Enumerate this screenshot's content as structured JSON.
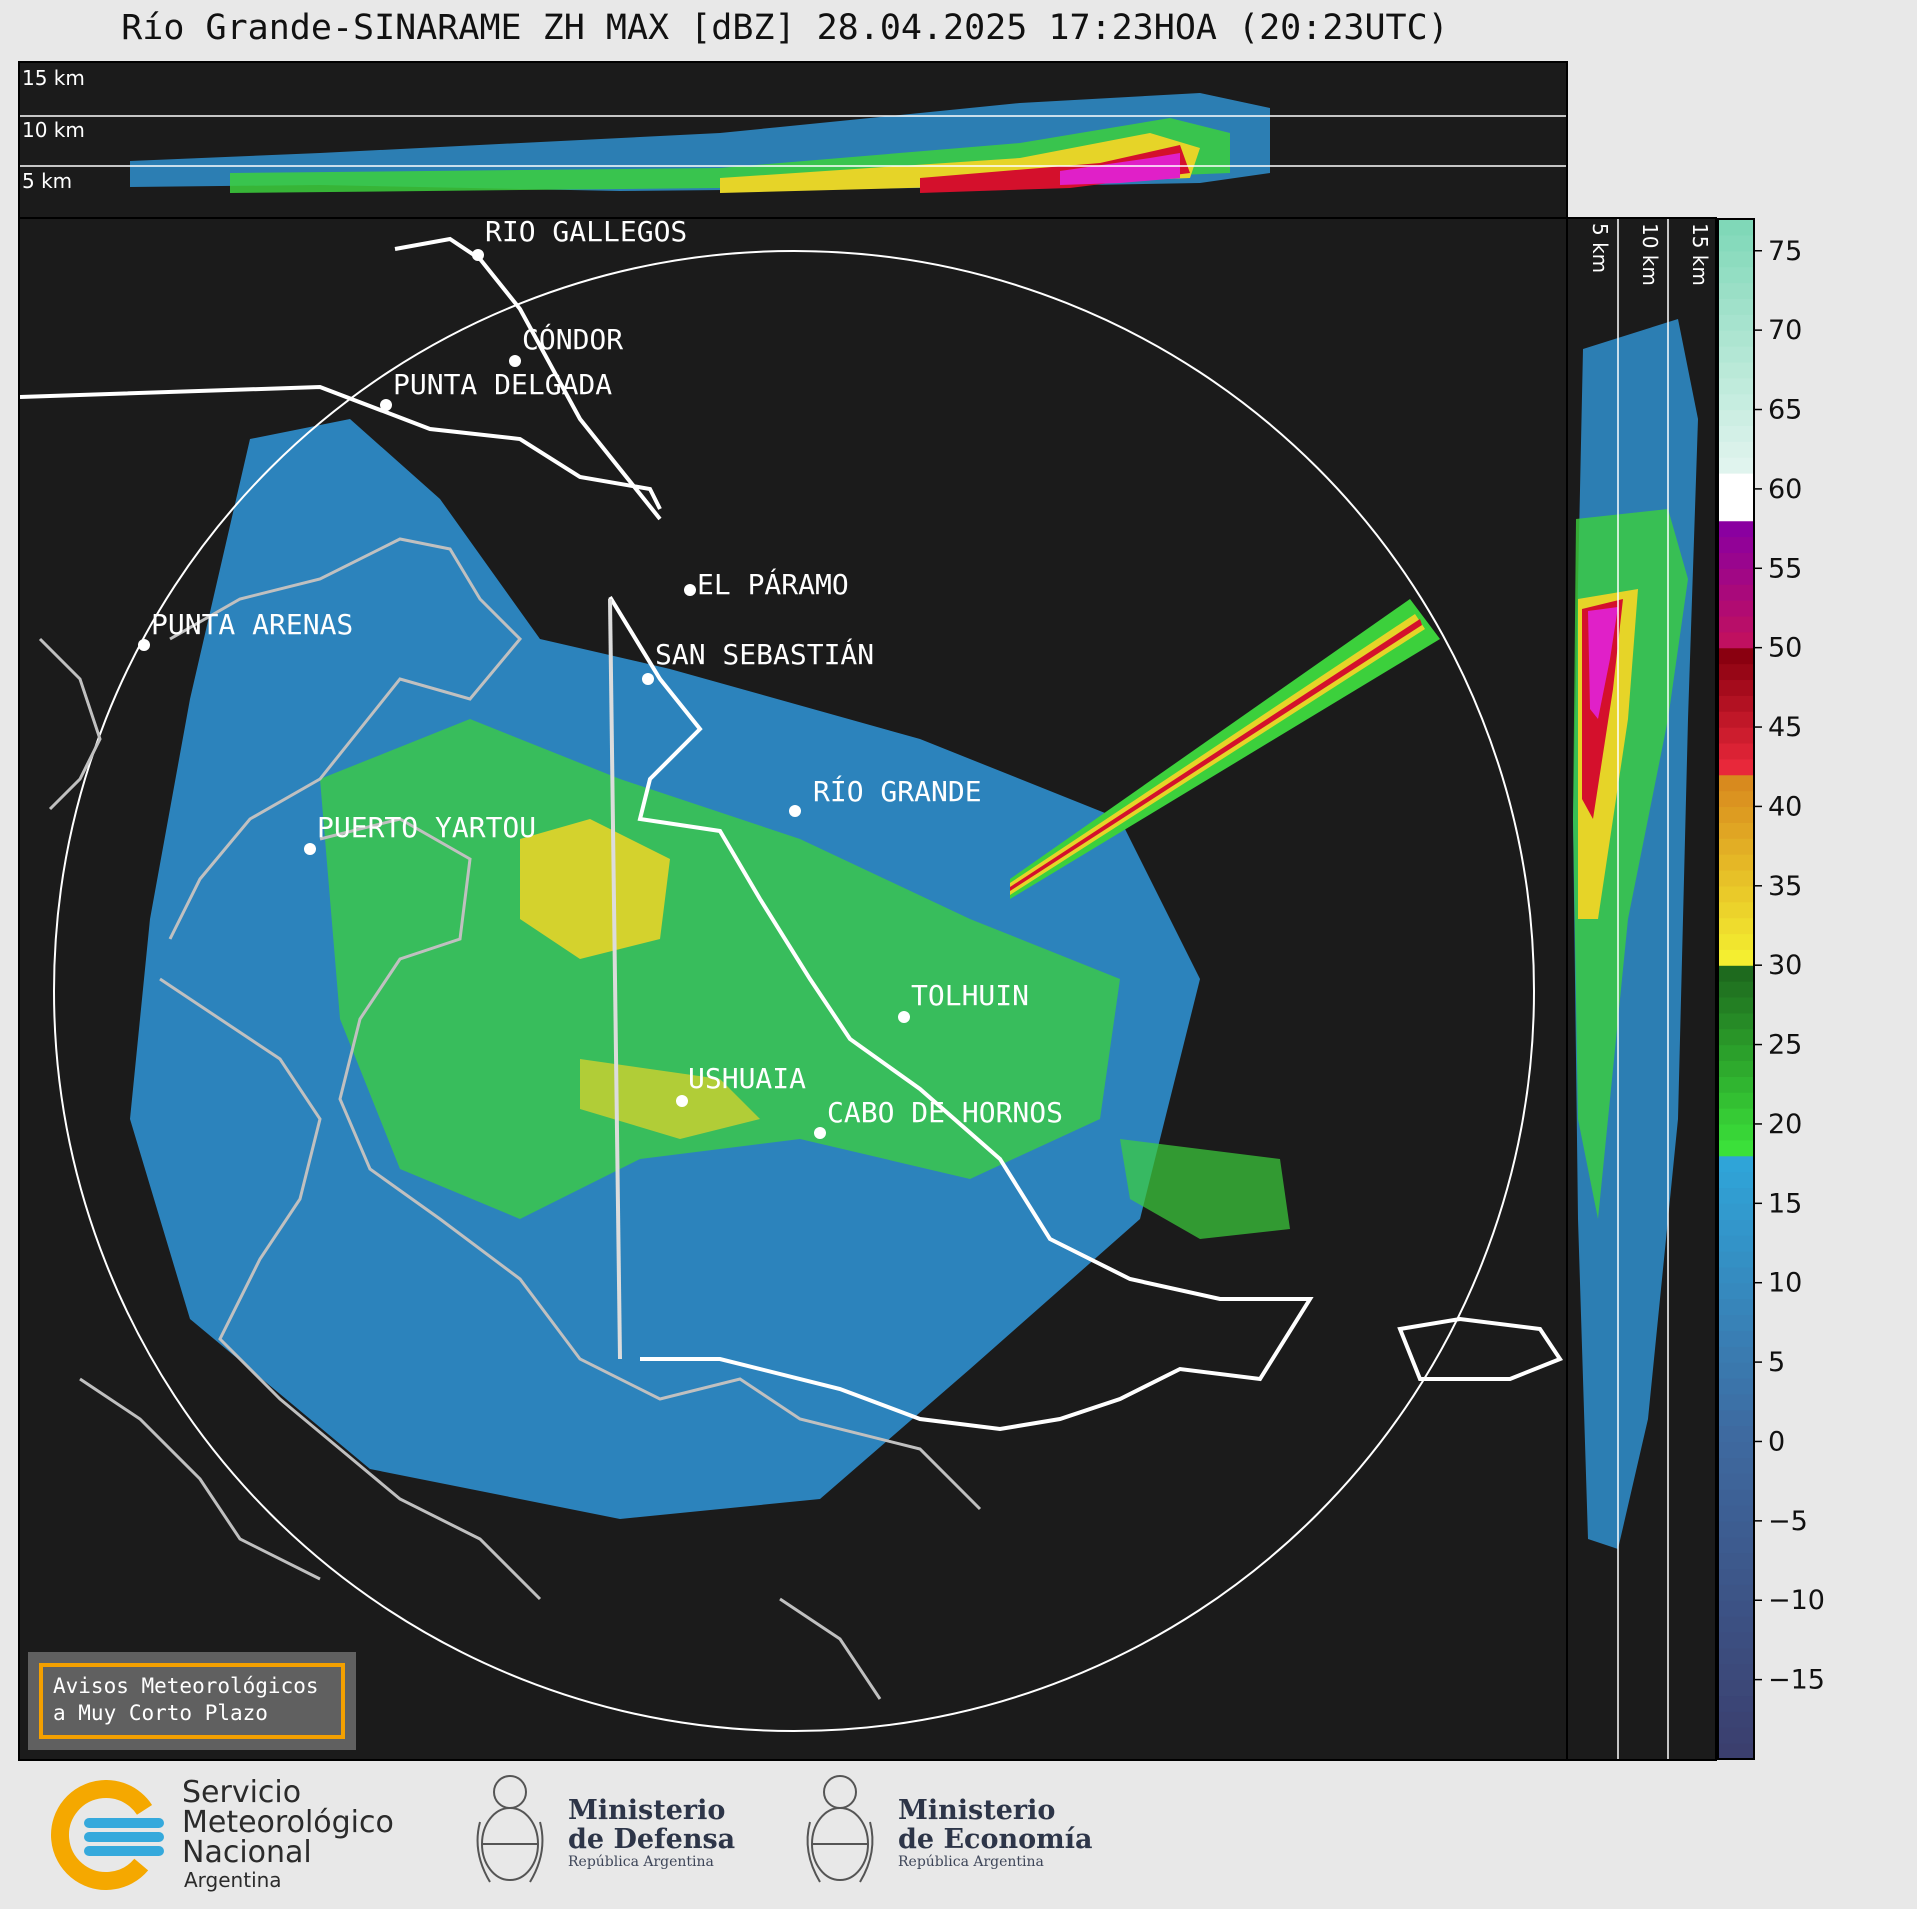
{
  "header": {
    "title": "Río Grande-SINARAME ZH MAX [dBZ] 28.04.2025 17:23HOA (20:23UTC)"
  },
  "cross_section_top": {
    "height_labels": [
      "15 km",
      "10 km",
      "5 km"
    ]
  },
  "cross_section_side": {
    "height_labels": [
      "5 km",
      "10 km",
      "15 km"
    ]
  },
  "map": {
    "places": [
      {
        "name": "RÍO GALLEGOS"
      },
      {
        "name": "CÓNDOR"
      },
      {
        "name": "PUNTA DELGADA"
      },
      {
        "name": "EL PÁRAMO"
      },
      {
        "name": "PUNTA ARENAS"
      },
      {
        "name": "SAN SEBASTIÁN"
      },
      {
        "name": "RÍO GRANDE"
      },
      {
        "name": "PUERTO YARTOU"
      },
      {
        "name": "TOLHUIN"
      },
      {
        "name": "USHUAIA"
      },
      {
        "name": "CABO DE HORNOS"
      }
    ]
  },
  "colorbar": {
    "unit": "dBZ",
    "min": -20,
    "max": 77,
    "ticks": [
      "75",
      "70",
      "65",
      "60",
      "55",
      "50",
      "45",
      "40",
      "35",
      "30",
      "25",
      "20",
      "15",
      "10",
      "5",
      "0",
      "−5",
      "−10",
      "−15"
    ],
    "colors": {
      "below_0": "#3b4a7a",
      "0_to_17": "#2f8fce",
      "18_to_30": "#3cd03c",
      "30_to_42": "#e6d428",
      "42_to_50": "#d4102c",
      "50_to_58": "#e020c8",
      "58_to_61": "#ffffff",
      "61_to_77": "#8fe0c0"
    }
  },
  "notice": {
    "line1": "Avisos Meteorológicos",
    "line2": "a Muy Corto Plazo"
  },
  "footer": {
    "smn": {
      "line1": "Servicio",
      "line2": "Meteorológico",
      "line3": "Nacional",
      "line4": "Argentina"
    },
    "defensa": {
      "line1": "Ministerio",
      "line2": "de Defensa",
      "sub": "República Argentina"
    },
    "economia": {
      "line1": "Ministerio",
      "line2": "de Economía",
      "sub": "República Argentina"
    }
  }
}
